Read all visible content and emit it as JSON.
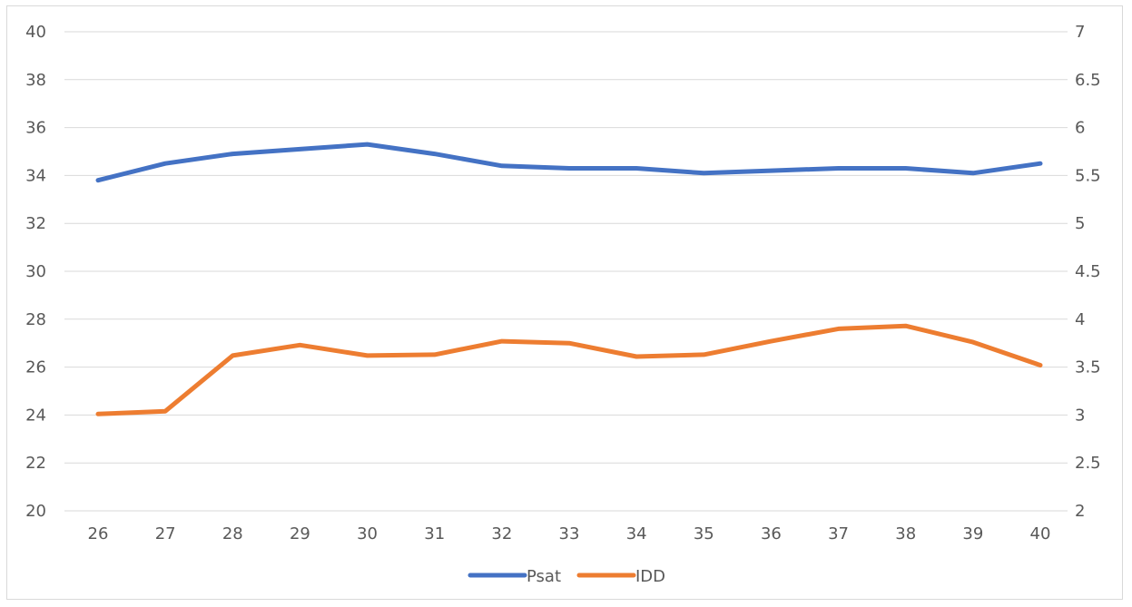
{
  "chart_data": {
    "type": "line",
    "x": [
      26,
      27,
      28,
      29,
      30,
      31,
      32,
      33,
      34,
      35,
      36,
      37,
      38,
      39,
      40
    ],
    "series": [
      {
        "name": "Psat",
        "axis": "left",
        "color": "#4472C4",
        "values": [
          33.8,
          34.5,
          34.9,
          35.1,
          35.3,
          34.9,
          34.4,
          34.3,
          34.3,
          34.1,
          34.2,
          34.3,
          34.3,
          34.1,
          34.5
        ]
      },
      {
        "name": "IDD",
        "axis": "right",
        "color": "#ED7D31",
        "values": [
          3.01,
          3.04,
          3.62,
          3.73,
          3.62,
          3.63,
          3.77,
          3.75,
          3.61,
          3.63,
          3.77,
          3.9,
          3.93,
          3.76,
          3.52
        ]
      }
    ],
    "y_left": {
      "lim": [
        20,
        40
      ],
      "ticks": [
        "20",
        "22",
        "24",
        "26",
        "28",
        "30",
        "32",
        "34",
        "36",
        "38",
        "40"
      ]
    },
    "y_right": {
      "lim": [
        2,
        7
      ],
      "ticks": [
        "2",
        "2.5",
        "3",
        "3.5",
        "4",
        "4.5",
        "5",
        "5.5",
        "6",
        "6.5",
        "7"
      ]
    },
    "x_ticks": [
      "26",
      "27",
      "28",
      "29",
      "30",
      "31",
      "32",
      "33",
      "34",
      "35",
      "36",
      "37",
      "38",
      "39",
      "40"
    ],
    "title": "",
    "xlabel": "",
    "ylabel": "",
    "grid": "horizontal",
    "gridline_color": "#d9d9d9",
    "legend_position": "bottom"
  }
}
